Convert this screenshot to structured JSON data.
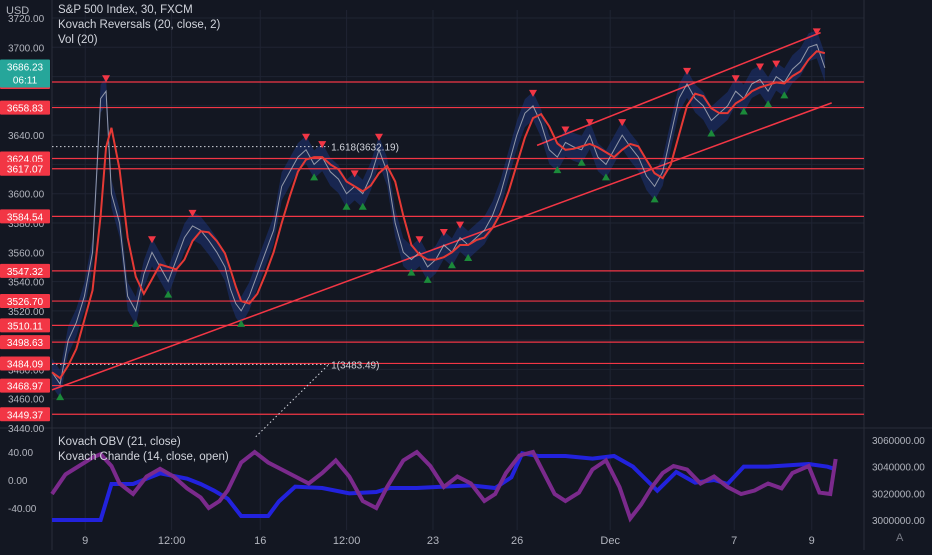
{
  "header": {
    "currency": "USD"
  },
  "legend": {
    "title": "S&P 500 Index, 30, FXCM",
    "reversals": "Kovach Reversals (20, close, 2)",
    "vol": "Vol (20)",
    "obv": "Kovach OBV (21, close)",
    "chande": "Kovach Chande (14, close, open)"
  },
  "timezone_button": "A",
  "colors": {
    "background": "#131722",
    "grid": "#1f2433",
    "level_line": "#f23645",
    "price": "#b2b5be",
    "ma": "#e53935",
    "band": "#1e3a8a",
    "arrow_down": "#f23645",
    "arrow_up": "#1b8a3a",
    "obv_line": "#2222dd",
    "chande_line": "#7b2a8c",
    "last_price_badge": "#26a69a"
  },
  "chart_data": [
    {
      "type": "line",
      "title": "S&P 500 Index, 30, FXCM",
      "ylabel": "USD",
      "ylim": [
        3440,
        3720
      ],
      "x_ticks": [
        "9",
        "12:00",
        "16",
        "12:00",
        "23",
        "26",
        "Dec",
        "7",
        "9"
      ],
      "y_ticks": [
        "3720.00",
        "3700.00",
        "3680.00",
        "3660.00",
        "3640.00",
        "3620.00",
        "3600.00",
        "3580.00",
        "3560.00",
        "3540.00",
        "3520.00",
        "3500.00",
        "3480.00",
        "3460.00",
        "3440.00"
      ],
      "last_price": {
        "label": "3686.23",
        "countdown": "06:11"
      },
      "horizontal_levels": [
        "3676.31",
        "3658.83",
        "3624.05",
        "3617.07",
        "3584.54",
        "3547.32",
        "3526.70",
        "3510.11",
        "3498.63",
        "3484.09",
        "3468.97",
        "3449.37"
      ],
      "fib_labels": [
        {
          "label": "1.618(3632.19)",
          "y": 3632.19
        },
        {
          "label": "1(3483.49)",
          "y": 3483.49
        }
      ],
      "channel": {
        "upper": [
          [
            21.9,
            3633
          ],
          [
            34.7,
            3710
          ]
        ],
        "lower": [
          [
            0,
            3466
          ],
          [
            35.2,
            3662
          ]
        ]
      },
      "series": [
        {
          "values": [
            [
              0,
              3478
            ],
            [
              0.3,
              3470
            ],
            [
              0.6,
              3500
            ],
            [
              0.9,
              3512
            ],
            [
              1.2,
              3530
            ],
            [
              1.5,
              3560
            ],
            [
              1.8,
              3665
            ],
            [
              2.0,
              3670
            ],
            [
              2.2,
              3600
            ],
            [
              2.5,
              3580
            ],
            [
              2.8,
              3530
            ],
            [
              3.1,
              3520
            ],
            [
              3.4,
              3545
            ],
            [
              3.7,
              3560
            ],
            [
              4.0,
              3550
            ],
            [
              4.3,
              3540
            ],
            [
              4.6,
              3555
            ],
            [
              4.9,
              3570
            ],
            [
              5.2,
              3578
            ],
            [
              5.5,
              3575
            ],
            [
              5.8,
              3568
            ],
            [
              6.1,
              3560
            ],
            [
              6.4,
              3550
            ],
            [
              6.6,
              3535
            ],
            [
              6.8,
              3525
            ],
            [
              7.0,
              3520
            ],
            [
              7.3,
              3530
            ],
            [
              7.6,
              3545
            ],
            [
              7.9,
              3560
            ],
            [
              8.2,
              3575
            ],
            [
              8.5,
              3605
            ],
            [
              8.8,
              3615
            ],
            [
              9.1,
              3625
            ],
            [
              9.4,
              3630
            ],
            [
              9.7,
              3620
            ],
            [
              10.0,
              3625
            ],
            [
              10.3,
              3615
            ],
            [
              10.6,
              3610
            ],
            [
              10.9,
              3600
            ],
            [
              11.2,
              3605
            ],
            [
              11.5,
              3600
            ],
            [
              11.8,
              3612
            ],
            [
              12.1,
              3630
            ],
            [
              12.4,
              3615
            ],
            [
              12.7,
              3580
            ],
            [
              13.0,
              3560
            ],
            [
              13.3,
              3555
            ],
            [
              13.6,
              3560
            ],
            [
              13.9,
              3550
            ],
            [
              14.2,
              3555
            ],
            [
              14.5,
              3565
            ],
            [
              14.8,
              3560
            ],
            [
              15.1,
              3570
            ],
            [
              15.4,
              3565
            ],
            [
              15.7,
              3570
            ],
            [
              16.0,
              3575
            ],
            [
              16.3,
              3585
            ],
            [
              16.6,
              3600
            ],
            [
              16.9,
              3620
            ],
            [
              17.2,
              3640
            ],
            [
              17.5,
              3655
            ],
            [
              17.8,
              3660
            ],
            [
              18.1,
              3648
            ],
            [
              18.4,
              3630
            ],
            [
              18.7,
              3625
            ],
            [
              19.0,
              3635
            ],
            [
              19.3,
              3632
            ],
            [
              19.6,
              3630
            ],
            [
              19.9,
              3640
            ],
            [
              20.2,
              3625
            ],
            [
              20.5,
              3620
            ],
            [
              20.8,
              3630
            ],
            [
              21.1,
              3640
            ],
            [
              21.4,
              3632
            ],
            [
              21.7,
              3625
            ],
            [
              22.0,
              3612
            ],
            [
              22.3,
              3605
            ],
            [
              22.6,
              3615
            ],
            [
              22.9,
              3640
            ],
            [
              23.2,
              3665
            ],
            [
              23.5,
              3675
            ],
            [
              23.8,
              3665
            ],
            [
              24.1,
              3660
            ],
            [
              24.4,
              3650
            ],
            [
              24.7,
              3655
            ],
            [
              25.0,
              3660
            ],
            [
              25.3,
              3670
            ],
            [
              25.6,
              3665
            ],
            [
              25.9,
              3675
            ],
            [
              26.2,
              3678
            ],
            [
              26.5,
              3670
            ],
            [
              26.8,
              3680
            ],
            [
              27.1,
              3676
            ],
            [
              27.4,
              3685
            ],
            [
              27.7,
              3690
            ],
            [
              28.0,
              3700
            ],
            [
              28.3,
              3702
            ],
            [
              28.6,
              3686
            ]
          ]
        },
        {
          "name": "Kovach OBV (21, close)",
          "ylim": [
            3000000,
            3060000
          ]
        },
        {
          "name": "Kovach Chande (14, close, open)",
          "ylim": [
            -60,
            60
          ]
        }
      ]
    },
    {
      "type": "line",
      "title": "",
      "ylim": [
        -60,
        60
      ],
      "y_ticks": [
        "40.00",
        "0.00",
        "-40.00"
      ],
      "y2_ticks": [
        "3060000.00",
        "3040000.00",
        "3020000.00",
        "3000000.00"
      ],
      "series": [
        {
          "name": "Kovach OBV (21, close)",
          "values": [
            [
              0,
              3000000
            ],
            [
              1.8,
              3000000
            ],
            [
              2.2,
              3027000
            ],
            [
              3.0,
              3027000
            ],
            [
              4.0,
              3035000
            ],
            [
              4.5,
              3033000
            ],
            [
              5.0,
              3031000
            ],
            [
              5.5,
              3027000
            ],
            [
              6.0,
              3022000
            ],
            [
              6.5,
              3016000
            ],
            [
              7.0,
              3003000
            ],
            [
              8.0,
              3003000
            ],
            [
              8.4,
              3014000
            ],
            [
              9.0,
              3025000
            ],
            [
              10.0,
              3024000
            ],
            [
              11.0,
              3020000
            ],
            [
              12.0,
              3021000
            ],
            [
              12.5,
              3024000
            ],
            [
              13.5,
              3024000
            ],
            [
              14.5,
              3025000
            ],
            [
              15.5,
              3026000
            ],
            [
              16.4,
              3024000
            ],
            [
              17.0,
              3032000
            ],
            [
              17.4,
              3050000
            ],
            [
              18.0,
              3048000
            ],
            [
              19.0,
              3048000
            ],
            [
              20.0,
              3046000
            ],
            [
              20.8,
              3048000
            ],
            [
              21.5,
              3040000
            ],
            [
              22.0,
              3030000
            ],
            [
              22.4,
              3022000
            ],
            [
              23.1,
              3036000
            ],
            [
              23.8,
              3028000
            ],
            [
              24.5,
              3030000
            ],
            [
              25.0,
              3027000
            ],
            [
              25.6,
              3040000
            ],
            [
              26.5,
              3040000
            ],
            [
              28.0,
              3042000
            ],
            [
              28.7,
              3040000
            ],
            [
              29.0,
              3038000
            ]
          ]
        },
        {
          "name": "Kovach Chande (14, close, open)",
          "values": [
            [
              0,
              -20
            ],
            [
              0.5,
              8
            ],
            [
              1.0,
              20
            ],
            [
              1.5,
              32
            ],
            [
              1.8,
              37
            ],
            [
              2.2,
              20
            ],
            [
              2.5,
              -5
            ],
            [
              3.0,
              -20
            ],
            [
              3.5,
              5
            ],
            [
              4.0,
              16
            ],
            [
              4.5,
              5
            ],
            [
              5.0,
              -12
            ],
            [
              5.5,
              -25
            ],
            [
              5.8,
              -40
            ],
            [
              6.2,
              -30
            ],
            [
              6.5,
              -15
            ],
            [
              7.0,
              25
            ],
            [
              7.5,
              40
            ],
            [
              8.0,
              25
            ],
            [
              8.5,
              15
            ],
            [
              9.0,
              5
            ],
            [
              9.5,
              -5
            ],
            [
              10.0,
              10
            ],
            [
              10.5,
              28
            ],
            [
              11.0,
              5
            ],
            [
              11.5,
              -30
            ],
            [
              12.0,
              -40
            ],
            [
              12.4,
              -10
            ],
            [
              13.0,
              28
            ],
            [
              13.5,
              40
            ],
            [
              14.0,
              20
            ],
            [
              14.5,
              -10
            ],
            [
              15.0,
              5
            ],
            [
              15.5,
              -5
            ],
            [
              16.0,
              -30
            ],
            [
              16.4,
              -20
            ],
            [
              16.8,
              10
            ],
            [
              17.3,
              35
            ],
            [
              17.8,
              40
            ],
            [
              18.2,
              10
            ],
            [
              18.6,
              -20
            ],
            [
              19.0,
              -30
            ],
            [
              19.5,
              -18
            ],
            [
              20.0,
              15
            ],
            [
              20.5,
              28
            ],
            [
              21.0,
              -10
            ],
            [
              21.4,
              -55
            ],
            [
              21.8,
              -35
            ],
            [
              22.2,
              -10
            ],
            [
              22.6,
              10
            ],
            [
              23.0,
              20
            ],
            [
              23.5,
              15
            ],
            [
              24.0,
              -5
            ],
            [
              24.5,
              5
            ],
            [
              25.0,
              -10
            ],
            [
              25.5,
              -20
            ],
            [
              26.0,
              -15
            ],
            [
              26.5,
              -5
            ],
            [
              27.0,
              -12
            ],
            [
              27.4,
              10
            ],
            [
              28.0,
              20
            ],
            [
              28.4,
              -18
            ],
            [
              28.8,
              -20
            ],
            [
              29.0,
              30
            ]
          ]
        }
      ]
    }
  ]
}
